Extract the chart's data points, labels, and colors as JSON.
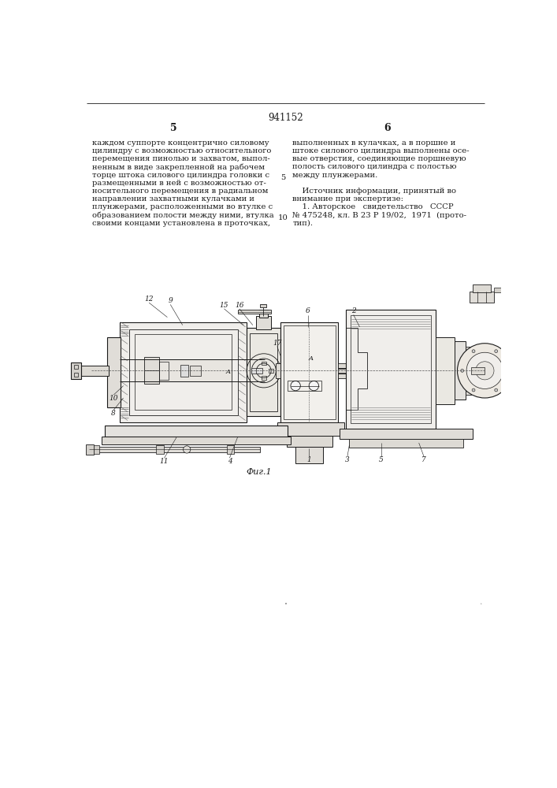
{
  "patent_number": "941152",
  "page_left": "5",
  "page_right": "6",
  "left_column_text": [
    "каждом суппорте концентрично силовому",
    "цилиндру с возможностью относительного",
    "перемещения пинолью и захватом, выпол-",
    "ненным в виде закрепленной на рабочем",
    "торце штока силового цилиндра головки с",
    "размещенными в ней с возможностью от-",
    "носительного перемещения в радиальном",
    "направлении захватными кулачками и",
    "плунжерами, расположенными во втулке с",
    "образованием полости между ними, втулка",
    "своими концами установлена в проточках,"
  ],
  "right_column_text": [
    "выполненных в кулачках, а в поршне и",
    "штоке силового цилиндра выполнены осе-",
    "вые отверстия, соединяющие поршневую",
    "полость силового цилиндра с полостью",
    "между плунжерами.",
    "",
    "    Источник информации, принятый во",
    "внимание при экспертизе:",
    "    1. Авторское   свидетельство   СССР",
    "№ 475248, кл. В 23 Р 19/02,  1971  (прото-",
    "тип)."
  ],
  "line_number_5": "5",
  "line_number_10": "10",
  "fig_caption": "Фиг.1",
  "bg_color": "#ffffff",
  "text_color": "#1a1a1a",
  "line_color": "#1a1a1a",
  "drawing_color": "#1a1a1a"
}
